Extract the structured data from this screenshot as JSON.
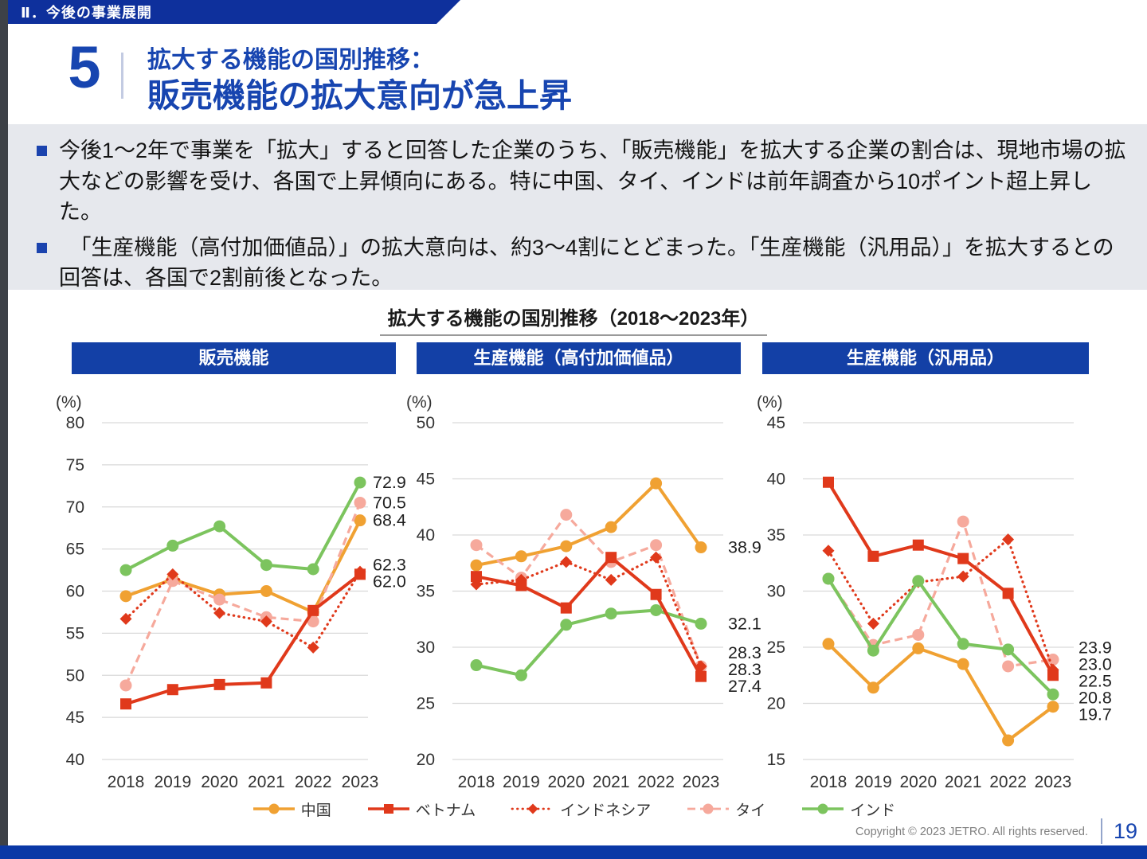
{
  "page": {
    "eyebrow": "Ⅱ．今後の事業展開",
    "slide_number": "5",
    "title_line1": "拡大する機能の国別推移：",
    "title_line2": "販売機能の拡大意向が急上昇",
    "bullets": [
      "今後1～2年で事業を「拡大」すると回答した企業のうち、「販売機能」を拡大する企業の割合は、現地市場の拡大などの影響を受け、各国で上昇傾向にある。特に中国、タイ、インドは前年調査から10ポイント超上昇した。",
      "　「生産機能（高付加価値品）」の拡大意向は、約3～4割にとどまった。「生産機能（汎用品）」を拡大するとの回答は、各国で2割前後となった。"
    ],
    "section_title": "拡大する機能の国別推移（2018～2023年）",
    "footer": {
      "copyright": "Copyright © 2023 JETRO. All rights reserved.",
      "page_number": "19"
    }
  },
  "colors": {
    "brand_blue": "#1340A6",
    "title_blue": "#1745B0",
    "china_orange": "#F0A132",
    "vietnam_red": "#E0391B",
    "indonesia_red": "#E0391B",
    "thailand_pink": "#F6A99C",
    "india_green": "#7CC45E"
  },
  "legend": [
    {
      "label": "中国",
      "color": "#F0A132",
      "line_style": "solid",
      "marker": "circle"
    },
    {
      "label": "ベトナム",
      "color": "#E0391B",
      "line_style": "solid",
      "marker": "square"
    },
    {
      "label": "インドネシア",
      "color": "#E0391B",
      "line_style": "dotted",
      "marker": "diamond"
    },
    {
      "label": "タイ",
      "color": "#F6A99C",
      "line_style": "dashed",
      "marker": "circle"
    },
    {
      "label": "インド",
      "color": "#7CC45E",
      "line_style": "solid",
      "marker": "circle"
    }
  ],
  "chart_data": [
    {
      "type": "line",
      "title": "販売機能",
      "unit": "(%)",
      "x": [
        "2018",
        "2019",
        "2020",
        "2021",
        "2022",
        "2023"
      ],
      "ylim": [
        40,
        80
      ],
      "ytick_step": 5,
      "grid": true,
      "series": [
        {
          "name": "中国",
          "color": "#F0A132",
          "line_style": "solid",
          "marker": "circle",
          "values": [
            59.4,
            61.4,
            59.6,
            60.0,
            57.5,
            68.4
          ],
          "end_label": "68.4"
        },
        {
          "name": "ベトナム",
          "color": "#E0391B",
          "line_style": "solid",
          "marker": "square",
          "values": [
            46.6,
            48.3,
            48.9,
            49.1,
            57.7,
            62.0
          ],
          "end_label": "62.0"
        },
        {
          "name": "インドネシア",
          "color": "#E0391B",
          "line_style": "dotted",
          "marker": "diamond",
          "values": [
            56.7,
            62.0,
            57.4,
            56.4,
            53.3,
            62.3
          ],
          "end_label": "62.3"
        },
        {
          "name": "タイ",
          "color": "#F6A99C",
          "line_style": "dashed",
          "marker": "circle",
          "values": [
            48.8,
            61.2,
            59.0,
            56.9,
            56.4,
            70.5
          ],
          "end_label": "70.5"
        },
        {
          "name": "インド",
          "color": "#7CC45E",
          "line_style": "solid",
          "marker": "circle",
          "values": [
            62.5,
            65.4,
            67.7,
            63.1,
            62.6,
            72.9
          ],
          "end_label": "72.9"
        }
      ]
    },
    {
      "type": "line",
      "title": "生産機能（高付加価値品）",
      "unit": "(%)",
      "x": [
        "2018",
        "2019",
        "2020",
        "2021",
        "2022",
        "2023"
      ],
      "ylim": [
        20,
        50
      ],
      "ytick_step": 5,
      "grid": true,
      "series": [
        {
          "name": "中国",
          "color": "#F0A132",
          "line_style": "solid",
          "marker": "circle",
          "values": [
            37.3,
            38.1,
            39.0,
            40.7,
            44.6,
            38.9
          ],
          "end_label": "38.9"
        },
        {
          "name": "ベトナム",
          "color": "#E0391B",
          "line_style": "solid",
          "marker": "square",
          "values": [
            36.3,
            35.5,
            33.5,
            38.0,
            34.7,
            27.4
          ],
          "end_label": "27.4"
        },
        {
          "name": "インドネシア",
          "color": "#E0391B",
          "line_style": "dotted",
          "marker": "diamond",
          "values": [
            35.6,
            36.0,
            37.6,
            36.0,
            38.0,
            28.3
          ],
          "end_label": "28.3"
        },
        {
          "name": "タイ",
          "color": "#F6A99C",
          "line_style": "dashed",
          "marker": "circle",
          "values": [
            39.1,
            36.2,
            41.8,
            37.6,
            39.1,
            28.3
          ],
          "end_label": "28.3"
        },
        {
          "name": "インド",
          "color": "#7CC45E",
          "line_style": "solid",
          "marker": "circle",
          "values": [
            28.4,
            27.5,
            32.0,
            33.0,
            33.3,
            32.1
          ],
          "end_label": "32.1"
        }
      ]
    },
    {
      "type": "line",
      "title": "生産機能（汎用品）",
      "unit": "(%)",
      "x": [
        "2018",
        "2019",
        "2020",
        "2021",
        "2022",
        "2023"
      ],
      "ylim": [
        15,
        45
      ],
      "ytick_step": 5,
      "grid": true,
      "series": [
        {
          "name": "中国",
          "color": "#F0A132",
          "line_style": "solid",
          "marker": "circle",
          "values": [
            25.3,
            21.4,
            24.9,
            23.5,
            16.7,
            19.7
          ],
          "end_label": "19.7"
        },
        {
          "name": "ベトナム",
          "color": "#E0391B",
          "line_style": "solid",
          "marker": "square",
          "values": [
            39.7,
            33.1,
            34.1,
            32.9,
            29.8,
            22.5
          ],
          "end_label": "22.5"
        },
        {
          "name": "インドネシア",
          "color": "#E0391B",
          "line_style": "dotted",
          "marker": "diamond",
          "values": [
            33.6,
            27.1,
            30.8,
            31.3,
            34.6,
            23.0
          ],
          "end_label": "23.0"
        },
        {
          "name": "タイ",
          "color": "#F6A99C",
          "line_style": "dashed",
          "marker": "circle",
          "values": [
            31.1,
            25.2,
            26.1,
            36.2,
            23.3,
            23.9
          ],
          "end_label": "23.9"
        },
        {
          "name": "インド",
          "color": "#7CC45E",
          "line_style": "solid",
          "marker": "circle",
          "values": [
            31.1,
            24.7,
            30.9,
            25.3,
            24.8,
            20.8
          ],
          "end_label": "20.8"
        }
      ]
    }
  ]
}
